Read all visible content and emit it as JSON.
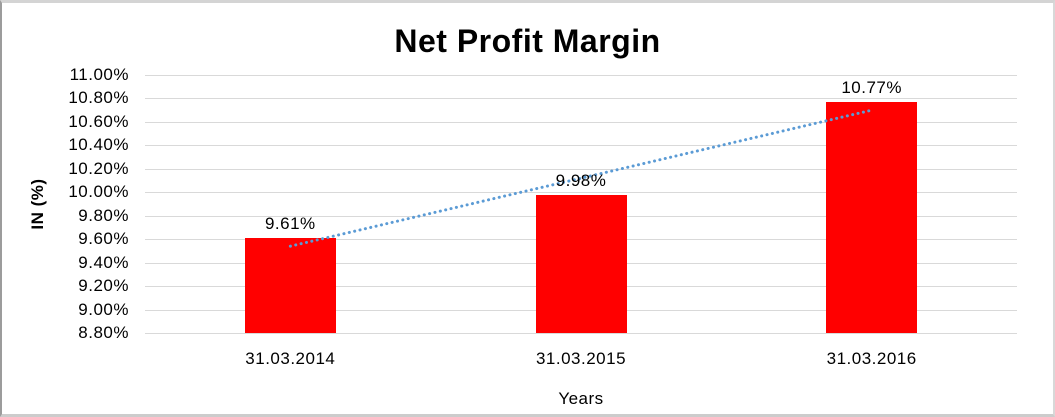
{
  "chart_data": {
    "type": "bar",
    "title": "Net Profit Margin",
    "xlabel": "Years",
    "ylabel": "IN (%)",
    "categories": [
      "31.03.2014",
      "31.03.2015",
      "31.03.2016"
    ],
    "values": [
      9.61,
      9.98,
      10.77
    ],
    "data_labels": [
      "9.61%",
      "9.98%",
      "10.77%"
    ],
    "ylim": [
      8.8,
      11.0
    ],
    "ytick_step": 0.2,
    "ytick_labels": [
      "11.00%",
      "10.80%",
      "10.60%",
      "10.40%",
      "10.20%",
      "10.00%",
      "9.80%",
      "9.60%",
      "9.40%",
      "9.20%",
      "9.00%",
      "8.80%"
    ],
    "grid": true,
    "legend": "none",
    "bar_color": "#ff0000",
    "gridline_color": "#d9d9d9",
    "text_color": "#000000",
    "trendline": {
      "type": "linear",
      "style": "dotted",
      "color": "#5b9bd5"
    }
  }
}
